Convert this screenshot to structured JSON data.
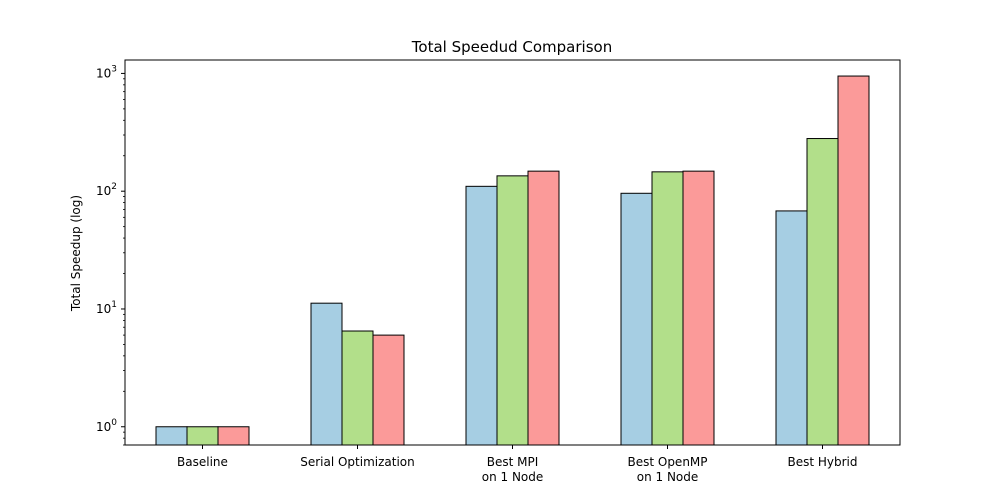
{
  "chart_data": {
    "type": "bar",
    "title": "Total Speedud Comparison",
    "xlabel": "",
    "ylabel": "Total Speedup (log)",
    "yscale": "log",
    "ylim": [
      0.7,
      1300
    ],
    "yticks": [
      {
        "value": 1,
        "base": "10",
        "exp": "0"
      },
      {
        "value": 10,
        "base": "10",
        "exp": "1"
      },
      {
        "value": 100,
        "base": "10",
        "exp": "2"
      },
      {
        "value": 1000,
        "base": "10",
        "exp": "3"
      }
    ],
    "categories": [
      [
        "Baseline"
      ],
      [
        "Serial Optimization"
      ],
      [
        "Best MPI",
        "on 1 Node"
      ],
      [
        "Best OpenMP",
        "on 1 Node"
      ],
      [
        "Best Hybrid"
      ]
    ],
    "series": [
      {
        "color": "#a6cee3",
        "values": [
          1,
          11.2,
          110,
          96,
          68
        ]
      },
      {
        "color": "#b2df8a",
        "values": [
          1,
          6.5,
          135,
          146,
          280
        ]
      },
      {
        "color": "#fb9a99",
        "values": [
          1,
          6.0,
          148,
          148,
          950
        ]
      }
    ],
    "grid": false,
    "legend": "none",
    "edge_color": "#000000"
  }
}
